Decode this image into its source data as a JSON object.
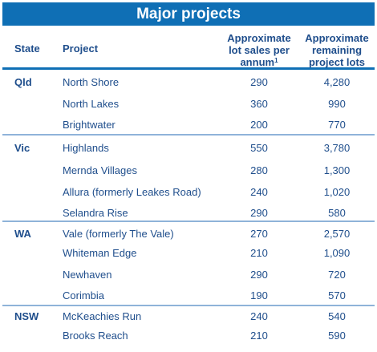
{
  "title": "Major projects",
  "headers": {
    "state": "State",
    "project": "Project",
    "sales_line1": "Approximate",
    "sales_line2": "lot sales per",
    "sales_line3": "annum",
    "sales_footnote": "1",
    "remaining_line1": "Approximate",
    "remaining_line2": "remaining",
    "remaining_line3": "project lots"
  },
  "rows": [
    {
      "state": "Qld",
      "project": "North Shore",
      "sales": "290",
      "remaining": "4,280"
    },
    {
      "state": "",
      "project": "North Lakes",
      "sales": "360",
      "remaining": "990"
    },
    {
      "state": "",
      "project": "Brightwater",
      "sales": "200",
      "remaining": "770"
    },
    {
      "state": "Vic",
      "project": "Highlands",
      "sales": "550",
      "remaining": "3,780"
    },
    {
      "state": "",
      "project": "Mernda Villages",
      "sales": "280",
      "remaining": "1,300"
    },
    {
      "state": "",
      "project": "Allura (formerly Leakes Road)",
      "sales": "240",
      "remaining": "1,020"
    },
    {
      "state": "",
      "project": "Selandra Rise",
      "sales": "290",
      "remaining": "580"
    },
    {
      "state": "WA",
      "project": "Vale (formerly The Vale)",
      "sales": "270",
      "remaining": "2,570"
    },
    {
      "state": "",
      "project": "Whiteman Edge",
      "sales": "210",
      "remaining": "1,090"
    },
    {
      "state": "",
      "project": "Newhaven",
      "sales": "290",
      "remaining": "720"
    },
    {
      "state": "",
      "project": "Corimbia",
      "sales": "190",
      "remaining": "570"
    },
    {
      "state": "NSW",
      "project": "McKeachies Run",
      "sales": "240",
      "remaining": "540"
    },
    {
      "state": "",
      "project": "Brooks Reach",
      "sales": "210",
      "remaining": "590"
    }
  ],
  "colors": {
    "title_bg": "#0f6fb5",
    "text": "#1f4e8c",
    "divider": "#8fb3d9"
  }
}
